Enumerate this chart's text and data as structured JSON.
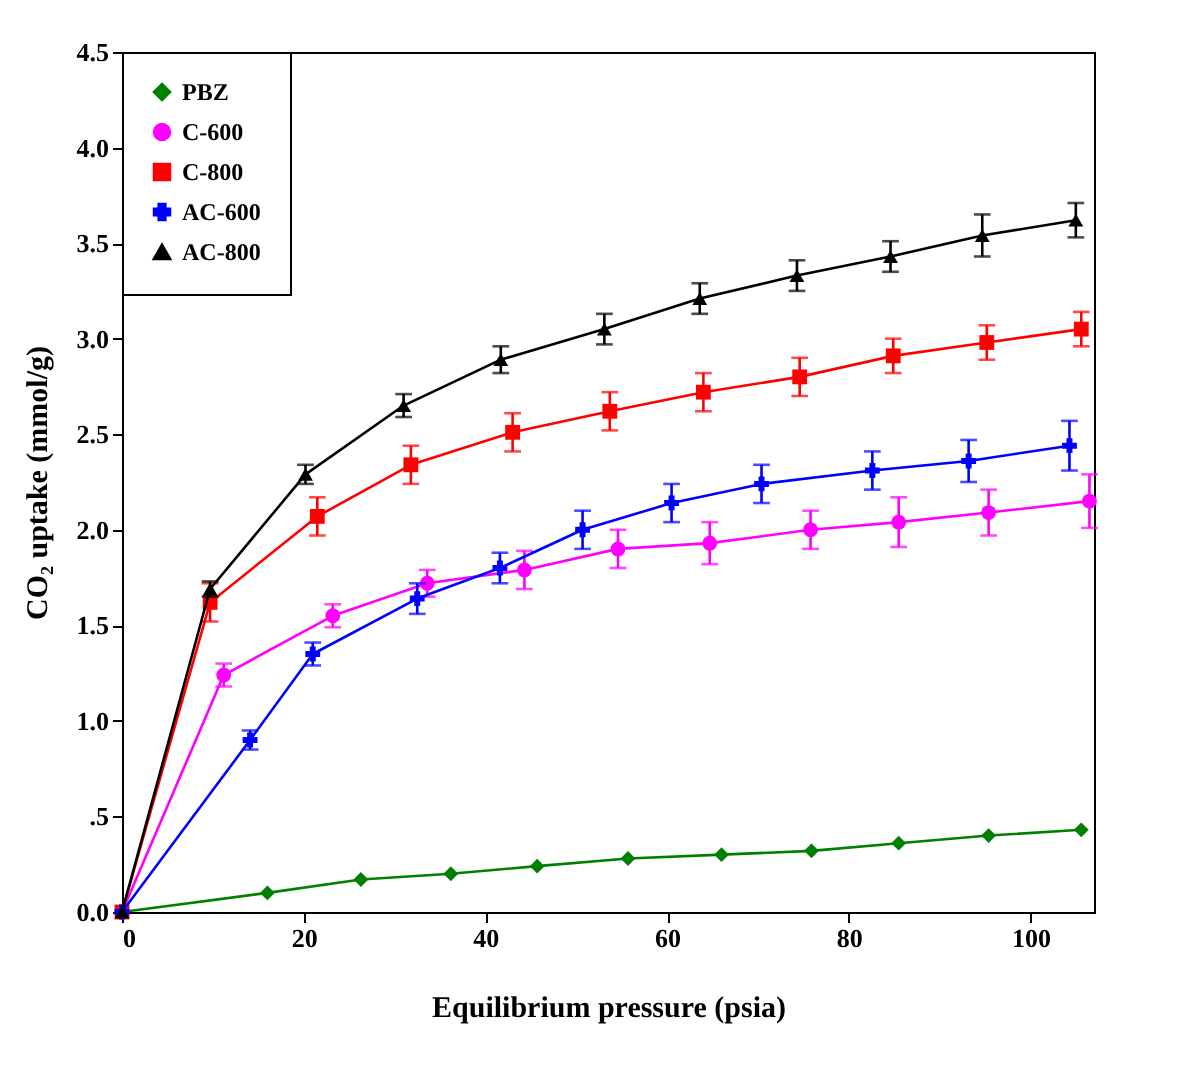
{
  "chart_data": {
    "type": "line",
    "xlabel": "Equilibrium pressure (psia)",
    "ylabel": "CO₂ uptake (mmol/g)",
    "xlim": [
      0,
      107
    ],
    "ylim": [
      0,
      4.5
    ],
    "xticks": [
      0,
      20,
      40,
      60,
      80,
      100
    ],
    "yticks": [
      {
        "value": 0,
        "label": "0.0"
      },
      {
        "value": 0.5,
        "label": ".5"
      },
      {
        "value": 1,
        "label": "1.0"
      },
      {
        "value": 1.5,
        "label": "1.5"
      },
      {
        "value": 2,
        "label": "2.0"
      },
      {
        "value": 2.5,
        "label": "2.5"
      },
      {
        "value": 3,
        "label": "3.0"
      },
      {
        "value": 3.5,
        "label": "3.5"
      },
      {
        "value": 4,
        "label": "4.0"
      },
      {
        "value": 4.5,
        "label": "4.5"
      }
    ],
    "grid": false,
    "legend": "top left",
    "series": [
      {
        "name": "PBZ",
        "color": "#008000",
        "marker": "diamond",
        "x": [
          0,
          16.0,
          26.3,
          36.2,
          45.7,
          55.7,
          66.0,
          75.9,
          85.5,
          95.4,
          105.6
        ],
        "values": [
          0,
          0.1,
          0.17,
          0.2,
          0.24,
          0.28,
          0.3,
          0.32,
          0.36,
          0.4,
          0.43
        ]
      },
      {
        "name": "C-600",
        "color": "#ff00ff",
        "marker": "circle",
        "x": [
          0,
          11.2,
          23.2,
          33.6,
          44.3,
          54.6,
          64.7,
          75.8,
          85.5,
          95.4,
          106.5
        ],
        "values": [
          0,
          1.24,
          1.55,
          1.72,
          1.79,
          1.9,
          1.93,
          2.0,
          2.04,
          2.09,
          2.15
        ],
        "errors": [
          null,
          0.06,
          0.06,
          0.07,
          0.1,
          0.1,
          0.11,
          0.1,
          0.13,
          0.12,
          0.14
        ]
      },
      {
        "name": "C-800",
        "color": "#ff0000",
        "marker": "square",
        "x": [
          0,
          9.7,
          21.5,
          31.8,
          43.0,
          53.7,
          64.0,
          74.6,
          84.9,
          95.2,
          105.6
        ],
        "values": [
          0,
          1.62,
          2.07,
          2.34,
          2.51,
          2.62,
          2.72,
          2.8,
          2.91,
          2.98,
          3.05
        ],
        "errors": [
          null,
          0.1,
          0.1,
          0.1,
          0.1,
          0.1,
          0.1,
          0.1,
          0.09,
          0.09,
          0.09
        ]
      },
      {
        "name": "AC-600",
        "color": "#0000ff",
        "marker": "cross",
        "x": [
          0,
          14.1,
          21.0,
          32.5,
          41.6,
          50.7,
          60.5,
          70.4,
          82.6,
          93.2,
          104.3
        ],
        "values": [
          0,
          0.9,
          1.35,
          1.64,
          1.8,
          2.0,
          2.14,
          2.24,
          2.31,
          2.36,
          2.44
        ],
        "errors": [
          null,
          0.05,
          0.06,
          0.08,
          0.08,
          0.1,
          0.1,
          0.1,
          0.1,
          0.11,
          0.13
        ]
      },
      {
        "name": "AC-800",
        "color": "#000000",
        "marker": "triangle",
        "x": [
          0,
          9.7,
          20.2,
          31.0,
          41.7,
          53.1,
          63.6,
          74.3,
          84.6,
          94.7,
          105.0
        ],
        "values": [
          0,
          1.69,
          2.29,
          2.65,
          2.89,
          3.05,
          3.21,
          3.33,
          3.43,
          3.54,
          3.62
        ],
        "errors": [
          null,
          0.04,
          0.05,
          0.06,
          0.07,
          0.08,
          0.08,
          0.08,
          0.08,
          0.11,
          0.09
        ]
      }
    ]
  }
}
